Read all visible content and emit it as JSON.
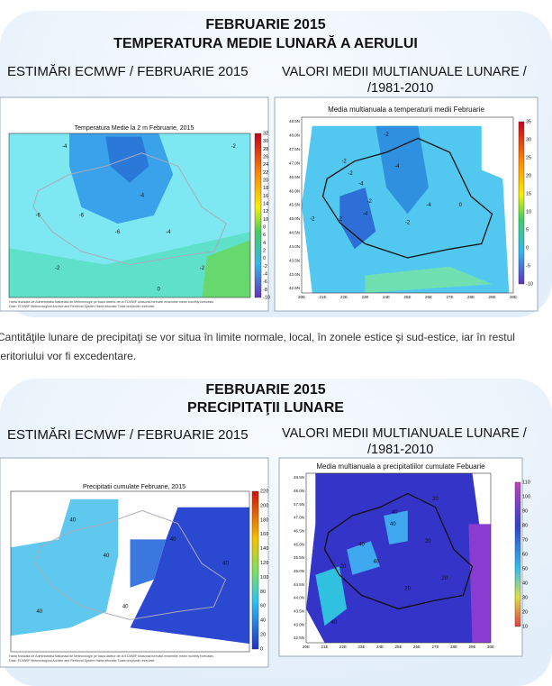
{
  "sections": [
    {
      "title_lines": [
        "FEBRUARIE 2015",
        "TEMPERATURA MEDIE LUNARĂ A AERULUI"
      ],
      "left_heading": "ESTIMĂRI ECMWF / FEBRUARIE 2015",
      "right_heading_lines": [
        "VALORI MEDII MULTIANUALE LUNARE /",
        "/1981-2010"
      ],
      "left_map": {
        "title": "Temperatura Medie la 2 m Februarie, 2015",
        "colorbar": [
          "32",
          "30",
          "28",
          "26",
          "24",
          "22",
          "20",
          "18",
          "16",
          "14",
          "12",
          "10",
          "8",
          "6",
          "4",
          "2",
          "0",
          "-2",
          "-4",
          "-6",
          "-8",
          "-10"
        ],
        "labels": [
          "-2",
          "-4",
          "-4",
          "-6",
          "-6",
          "-6",
          "-4",
          "-2",
          "-2",
          "0"
        ],
        "footer": [
          "Harta realizata de Administratia Nationala de Meteorologie pe baza datelor de la ECMWF seasonal forecast ensemble mean monthly forecasts",
          "Date: ECMWF Meteorological Archive and Retrieval System Harta difuzata: Toate drepturile rezervate"
        ]
      },
      "right_map": {
        "title": "Media multianuala a temperaturii medii Februarie",
        "colorbar": [
          "35",
          "30",
          "25",
          "20",
          "15",
          "10",
          "5",
          "0",
          "-5",
          "-10"
        ],
        "labels": [
          "-2",
          "-2",
          "-4",
          "-2",
          "-4",
          "-2",
          "-4",
          "-2",
          "-2",
          "-4",
          "-2",
          "0"
        ],
        "xticks": [
          "20E",
          "21E",
          "22E",
          "23E",
          "24E",
          "25E",
          "26E",
          "27E",
          "28E",
          "29E",
          "30E"
        ],
        "yticks": [
          "48.5N",
          "48.0N",
          "47.5N",
          "47.0N",
          "46.5N",
          "46.0N",
          "45.5N",
          "45.0N",
          "44.5N",
          "44.0N",
          "43.5N",
          "43.0N",
          "42.5N"
        ]
      }
    },
    {
      "title_lines": [
        "FEBRUARIE 2015",
        "PRECIPITAŢII LUNARE"
      ],
      "left_heading": "ESTIMĂRI ECMWF / FEBRUARIE 2015",
      "right_heading_lines": [
        "VALORI MEDII MULTIANUALE LUNARE /",
        "/1981-2010"
      ],
      "left_map": {
        "title": "Precipitatii cumulate Februarie, 2015",
        "colorbar": [
          "220",
          "200",
          "180",
          "160",
          "140",
          "120",
          "100",
          "80",
          "60",
          "40",
          "20",
          "0"
        ],
        "labels": [
          "40",
          "40",
          "40",
          "40",
          "40",
          "40"
        ],
        "footer": [
          "Harta realizata de Administratia Nationala de Meteorologie pe baza datelor de la ECMWF seasonal forecast ensemble mean monthly forecasts",
          "Date: ECMWF Meteorological Archive and Retrieval System Harta difuzata: Toate drepturile rezervate"
        ]
      },
      "right_map": {
        "title": "Media multianuala a precipitatiilor cumulate Febuarie",
        "colorbar": [
          "110",
          "100",
          "90",
          "80",
          "70",
          "60",
          "50",
          "40",
          "30",
          "20",
          "10"
        ],
        "labels": [
          "20",
          "40",
          "40",
          "40",
          "20",
          "20",
          "40",
          "20",
          "20",
          "40"
        ],
        "xticks": [
          "20E",
          "21E",
          "22E",
          "23E",
          "24E",
          "25E",
          "26E",
          "27E",
          "28E",
          "29E",
          "30E"
        ],
        "yticks": [
          "48.5N",
          "48.0N",
          "47.5N",
          "47.0N",
          "46.5N",
          "46.0N",
          "45.5N",
          "45.0N",
          "44.5N",
          "44.0N",
          "43.5N",
          "43.0N",
          "42.5N"
        ]
      }
    }
  ],
  "paragraph_lines": [
    "Cantităţile lunare de precipitaţi se vor situa în limite normale, local, în zonele estice şi sud-estice, iar în restul",
    "teritoriului vor fi excedentare."
  ]
}
